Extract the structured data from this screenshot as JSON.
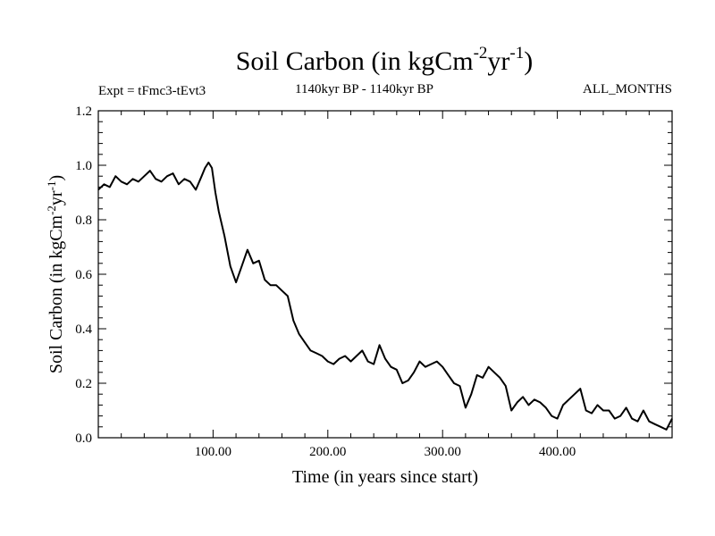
{
  "header": {
    "title_main": "Soil Carbon (in kgCm",
    "title_sup1": "-2",
    "title_mid": "yr",
    "title_sup2": "-1",
    "title_end": ")",
    "expt": "Expt = tFmc3-tEvt3",
    "period": "1140kyr BP - 1140kyr BP",
    "months": "ALL_MONTHS"
  },
  "chart_data": {
    "type": "line",
    "title": "Soil Carbon (in kgCm-2yr-1)",
    "xlabel": "Time (in years since start)",
    "ylabel": "Soil Carbon (in kgCm-2yr-1)",
    "xlim": [
      0,
      500
    ],
    "ylim": [
      0,
      1.2
    ],
    "xticks": [
      100,
      200,
      300,
      400
    ],
    "xtick_labels": [
      "100.00",
      "200.00",
      "300.00",
      "400.00"
    ],
    "yticks": [
      0,
      0.2,
      0.4,
      0.6,
      0.8,
      1.0,
      1.2
    ],
    "ytick_labels": [
      "0.0",
      "0.2",
      "0.4",
      "0.6",
      "0.8",
      "1.0",
      "1.2"
    ],
    "series": [
      {
        "name": "Soil Carbon",
        "color": "#000000",
        "x": [
          0,
          5,
          10,
          15,
          20,
          25,
          30,
          35,
          40,
          45,
          50,
          55,
          60,
          65,
          70,
          75,
          80,
          85,
          90,
          93,
          96,
          99,
          102,
          105,
          110,
          115,
          120,
          125,
          130,
          135,
          140,
          145,
          150,
          155,
          160,
          165,
          170,
          175,
          180,
          185,
          190,
          195,
          200,
          205,
          210,
          215,
          220,
          225,
          230,
          235,
          240,
          245,
          250,
          255,
          260,
          265,
          270,
          275,
          280,
          285,
          290,
          295,
          300,
          305,
          310,
          315,
          320,
          325,
          330,
          335,
          340,
          345,
          350,
          355,
          360,
          365,
          370,
          375,
          380,
          385,
          390,
          395,
          400,
          405,
          410,
          415,
          420,
          425,
          430,
          435,
          440,
          445,
          450,
          455,
          460,
          465,
          470,
          475,
          480,
          485,
          490,
          495,
          500
        ],
        "values": [
          0.91,
          0.93,
          0.92,
          0.96,
          0.94,
          0.93,
          0.95,
          0.94,
          0.96,
          0.98,
          0.95,
          0.94,
          0.96,
          0.97,
          0.93,
          0.95,
          0.94,
          0.91,
          0.96,
          0.99,
          1.01,
          0.99,
          0.9,
          0.83,
          0.74,
          0.63,
          0.57,
          0.63,
          0.69,
          0.64,
          0.65,
          0.58,
          0.56,
          0.56,
          0.54,
          0.52,
          0.43,
          0.38,
          0.35,
          0.32,
          0.31,
          0.3,
          0.28,
          0.27,
          0.29,
          0.3,
          0.28,
          0.3,
          0.32,
          0.28,
          0.27,
          0.34,
          0.29,
          0.26,
          0.25,
          0.2,
          0.21,
          0.24,
          0.28,
          0.26,
          0.27,
          0.28,
          0.26,
          0.23,
          0.2,
          0.19,
          0.11,
          0.16,
          0.23,
          0.22,
          0.26,
          0.24,
          0.22,
          0.19,
          0.1,
          0.13,
          0.15,
          0.12,
          0.14,
          0.13,
          0.11,
          0.08,
          0.07,
          0.12,
          0.14,
          0.16,
          0.18,
          0.1,
          0.09,
          0.12,
          0.1,
          0.1,
          0.07,
          0.08,
          0.11,
          0.07,
          0.06,
          0.1,
          0.06,
          0.05,
          0.04,
          0.03,
          0.07
        ]
      }
    ]
  }
}
